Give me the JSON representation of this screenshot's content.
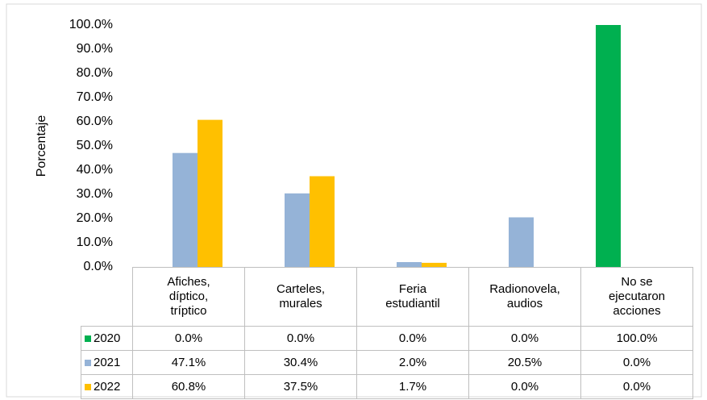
{
  "chart_data": {
    "type": "bar",
    "y_label": "Porcentaje",
    "categories": [
      "Afiches,\ndíptico,\ntríptico",
      "Carteles,\nmurales",
      "Feria\nestudiantil",
      "Radionovela,\naudios",
      "No se\nejecutaron\nacciones"
    ],
    "series": [
      {
        "name": "2020",
        "color": "#00b050",
        "values": [
          0,
          0,
          0,
          0,
          100
        ],
        "value_labels": [
          "0.0%",
          "0.0%",
          "0.0%",
          "0.0%",
          "100.0%"
        ]
      },
      {
        "name": "2021",
        "color": "#95b3d7",
        "values": [
          47.1,
          30.4,
          2.0,
          20.5,
          0
        ],
        "value_labels": [
          "47.1%",
          "30.4%",
          "2.0%",
          "20.5%",
          "0.0%"
        ]
      },
      {
        "name": "2022",
        "color": "#ffc000",
        "values": [
          60.8,
          37.5,
          1.7,
          0,
          0
        ],
        "value_labels": [
          "60.8%",
          "37.5%",
          "1.7%",
          "0.0%",
          "0.0%"
        ]
      }
    ],
    "ylim": [
      0,
      100
    ],
    "yticks": [
      {
        "value": 0,
        "label": "0.0%"
      },
      {
        "value": 10,
        "label": "10.0%"
      },
      {
        "value": 20,
        "label": "20.0%"
      },
      {
        "value": 30,
        "label": "30.0%"
      },
      {
        "value": 40,
        "label": "40.0%"
      },
      {
        "value": 50,
        "label": "50.0%"
      },
      {
        "value": 60,
        "label": "60.0%"
      },
      {
        "value": 70,
        "label": "70.0%"
      },
      {
        "value": 80,
        "label": "80.0%"
      },
      {
        "value": 90,
        "label": "90.0%"
      },
      {
        "value": 100,
        "label": "100.0%"
      }
    ],
    "grid": false
  }
}
